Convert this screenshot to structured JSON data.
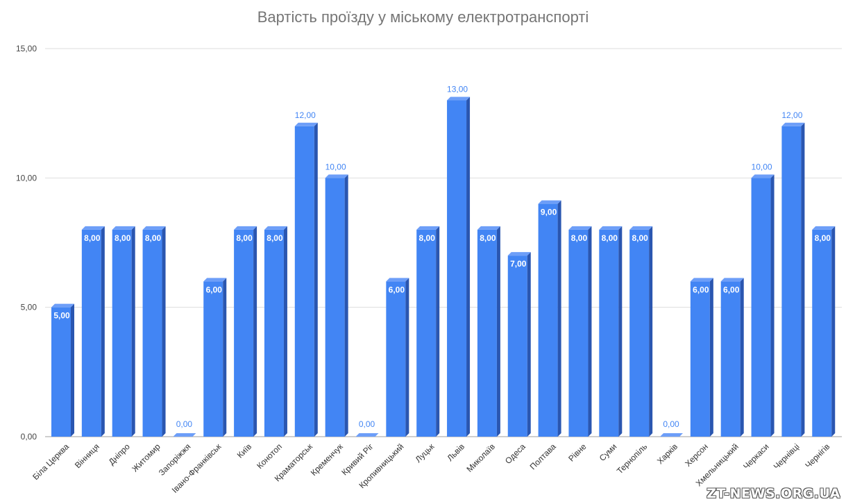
{
  "chart_data": {
    "type": "bar",
    "title": "Вартість проїзду у міському електротранспорті",
    "xlabel": "",
    "ylabel": "",
    "ylim": [
      0,
      15
    ],
    "yticks": [
      "0,00",
      "5,00",
      "10,00",
      "15,00"
    ],
    "ytick_values": [
      0,
      5,
      10,
      15
    ],
    "grid": true,
    "legend": "none",
    "categories": [
      "Біла Церква",
      "Вінниця",
      "Дніпро",
      "Житомир",
      "Запоріжжя",
      "Івано-Франківськ",
      "Київ",
      "Конотоп",
      "Краматорськ",
      "Кременчук",
      "Кривий Ріг",
      "Кропивницький",
      "Луцьк",
      "Львів",
      "Миколаїв",
      "Одеса",
      "Полтава",
      "Рівне",
      "Суми",
      "Тернопіль",
      "Харків",
      "Херсон",
      "Хмельницький",
      "Черкаси",
      "Чернівці",
      "Чернігів"
    ],
    "values": [
      5,
      8,
      8,
      8,
      0,
      6,
      8,
      8,
      12,
      10,
      0,
      6,
      8,
      13,
      8,
      7,
      9,
      8,
      8,
      8,
      0,
      6,
      6,
      10,
      12,
      8
    ],
    "value_labels": [
      "5,00",
      "8,00",
      "8,00",
      "8,00",
      "0,00",
      "6,00",
      "8,00",
      "8,00",
      "12,00",
      "10,00",
      "0,00",
      "6,00",
      "8,00",
      "13,00",
      "8,00",
      "7,00",
      "9,00",
      "8,00",
      "8,00",
      "8,00",
      "0,00",
      "6,00",
      "6,00",
      "10,00",
      "12,00",
      "8,00"
    ],
    "colors": {
      "bar_front": "#4285f4",
      "bar_side": "#2a56b0",
      "bar_top": "#6d9ef8",
      "grid": "#dddddd",
      "title": "#757575"
    }
  },
  "watermark": "ZT-NEWS.ORG.UA"
}
